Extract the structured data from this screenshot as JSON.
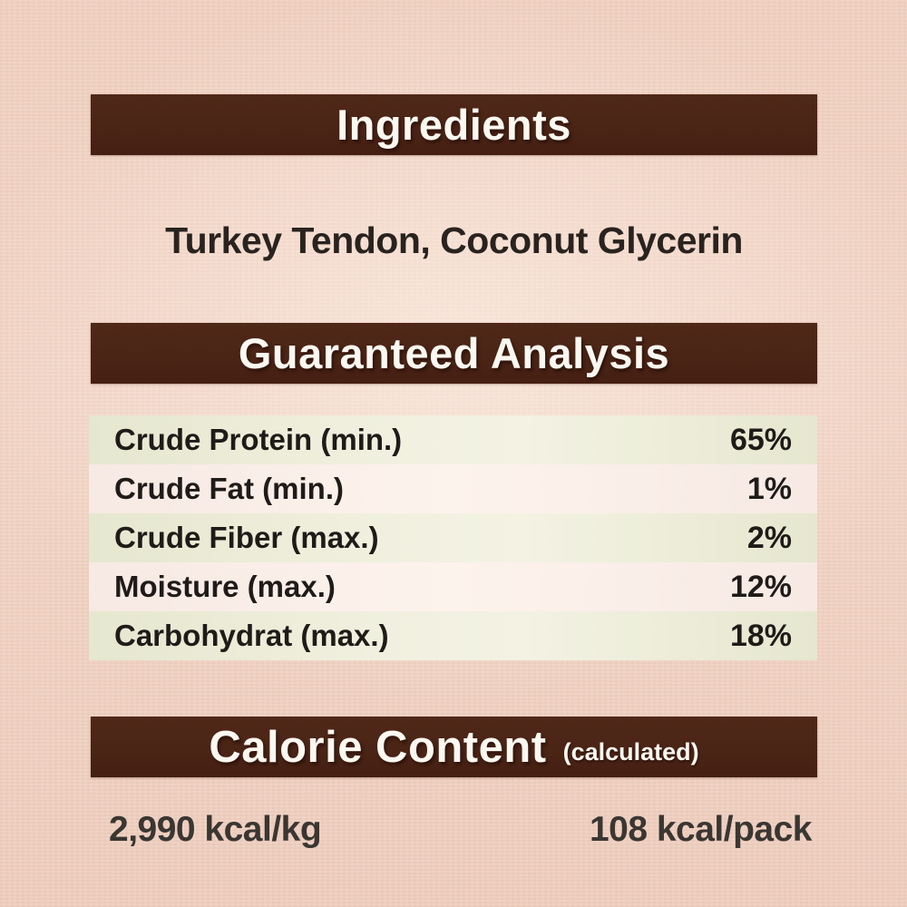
{
  "ingredients": {
    "title": "Ingredients",
    "list": "Turkey Tendon, Coconut Glycerin"
  },
  "guaranteed_analysis": {
    "title": "Guaranteed Analysis",
    "rows": [
      {
        "label": "Crude Protein (min.)",
        "value": "65%"
      },
      {
        "label": "Crude Fat (min.)",
        "value": "1%"
      },
      {
        "label": "Crude Fiber (max.)",
        "value": "2%"
      },
      {
        "label": "Moisture (max.)",
        "value": "12%"
      },
      {
        "label": "Carbohydrat (max.)",
        "value": "18%"
      }
    ]
  },
  "calorie_content": {
    "title": "Calorie Content",
    "subtitle": "(calculated)",
    "per_kg": "2,990 kcal/kg",
    "per_pack": "108 kcal/pack"
  },
  "colors": {
    "banner_brown": "#4a2415",
    "banner_text": "#fbf8f1",
    "row_green": "#e9e9d3",
    "row_pink": "#f8ece6",
    "background_pink": "#f0d2c2",
    "body_text": "#1f1b18"
  }
}
